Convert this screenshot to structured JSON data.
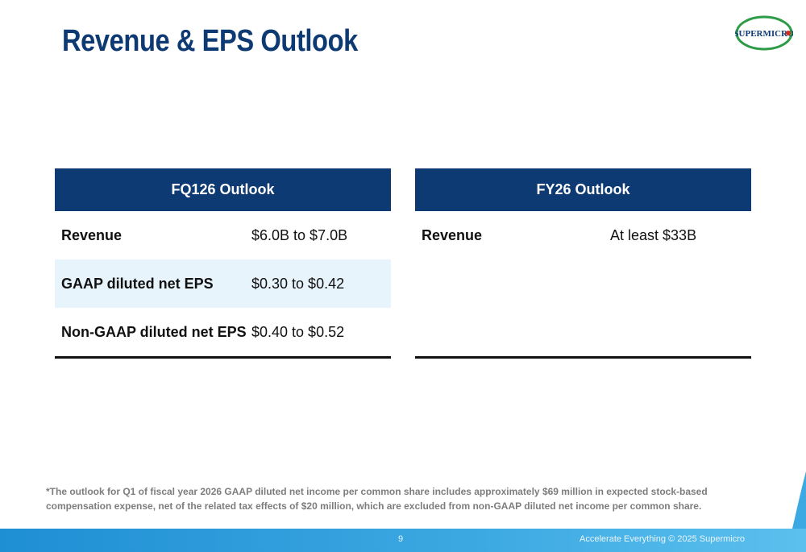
{
  "header": {
    "title": "Revenue & EPS Outlook",
    "logo_text": "SUPERMICRO"
  },
  "fq_outlook": {
    "heading": "FQ126 Outlook",
    "rows": [
      {
        "label": "Revenue",
        "value": "$6.0B to $7.0B"
      },
      {
        "label": "GAAP diluted net EPS",
        "value": "$0.30 to $0.42"
      },
      {
        "label": "Non-GAAP diluted net EPS",
        "value": "$0.40 to $0.52"
      }
    ]
  },
  "fy_outlook": {
    "heading": "FY26 Outlook",
    "rows": [
      {
        "label": "Revenue",
        "value": "At least $33B"
      }
    ]
  },
  "footnote": "*The outlook for Q1 of fiscal year 2026 GAAP diluted net income per common share includes approximately $69 million in expected stock-based compensation expense, net of the related tax effects of $20 million, which are excluded from non-GAAP diluted net income per common share.",
  "footer": {
    "page_number": "9",
    "tagline": "Accelerate Everything © 2025 Supermicro"
  },
  "colors": {
    "navy": "#0d3a73",
    "shade": "#e8f4fb",
    "footer_blue": "#3da9e2",
    "logo_green": "#2e9b47",
    "logo_red": "#d52b1e"
  }
}
